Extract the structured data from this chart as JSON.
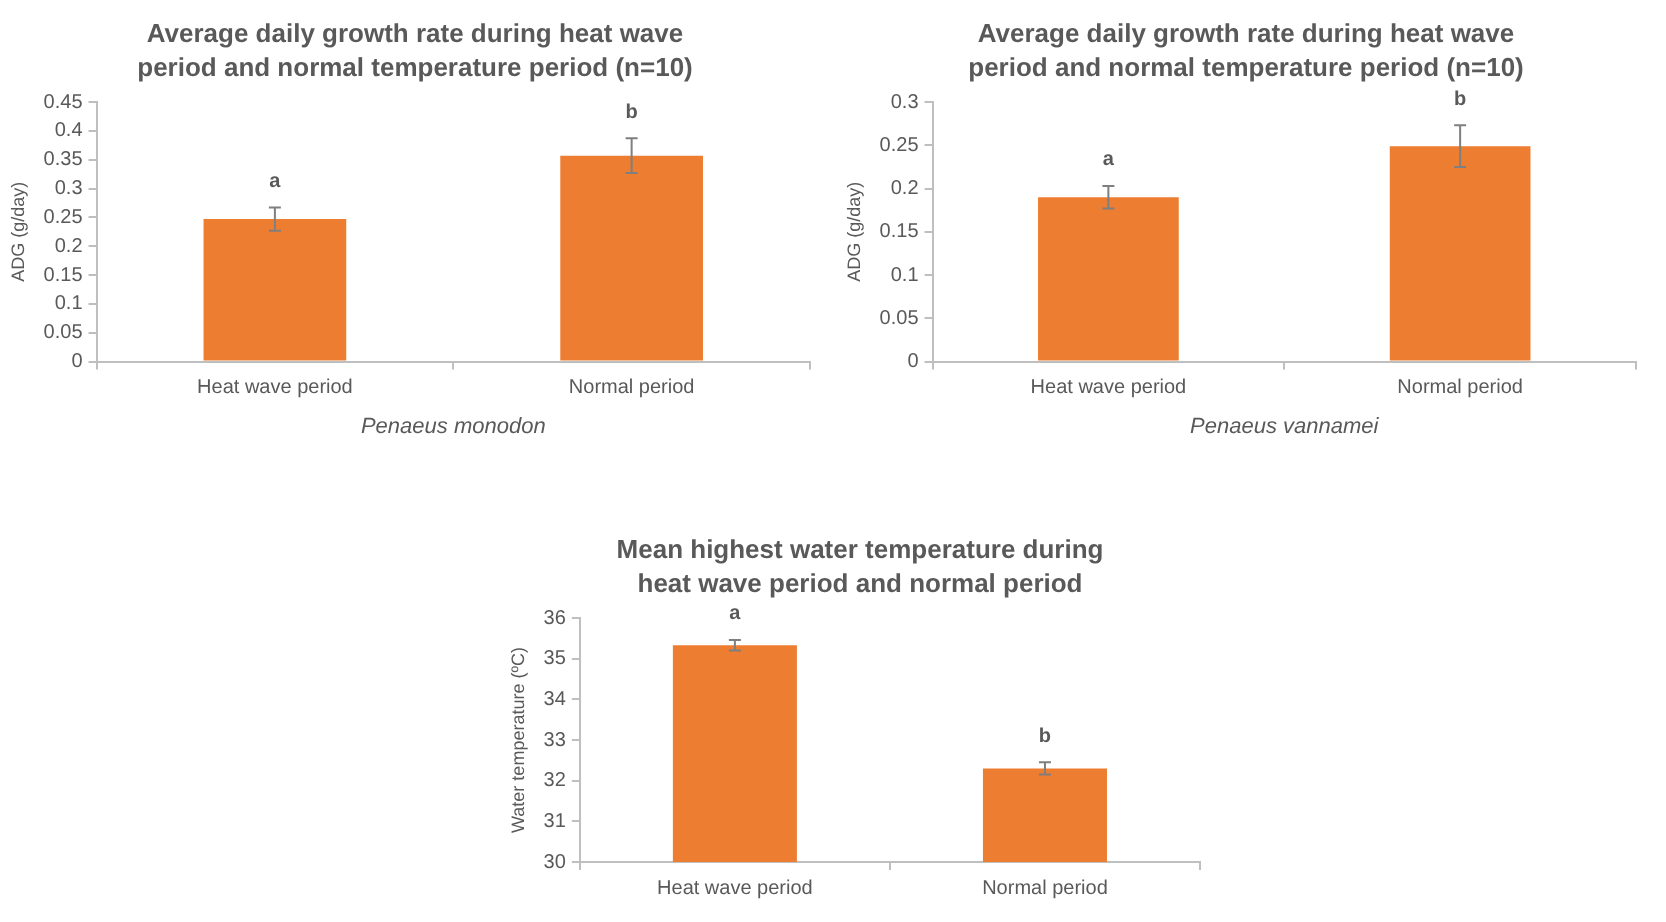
{
  "chart_data": [
    {
      "type": "bar",
      "title": "Average daily growth rate during heat wave period and normal temperature period (n=10)",
      "xlabel": "Penaeus monodon",
      "ylabel": "ADG (g/day)",
      "categories": [
        "Heat wave period",
        "Normal period"
      ],
      "values": [
        0.247,
        0.357
      ],
      "errors": [
        0.02,
        0.03
      ],
      "color": "#ed7d31",
      "ylim": [
        0,
        0.45
      ],
      "yticks": [
        0,
        0.05,
        0.1,
        0.15,
        0.2,
        0.25,
        0.3,
        0.35,
        0.4,
        0.45
      ],
      "grid": false,
      "legend": false,
      "annotations": [
        {
          "text": "a",
          "x": "Heat wave period",
          "y": 0.247
        },
        {
          "text": "b",
          "x": "Normal period",
          "y": 0.357
        }
      ]
    },
    {
      "type": "bar",
      "title": "Average daily growth rate during heat wave period and normal temperature period (n=10)",
      "xlabel": "Penaeus vannamei",
      "ylabel": "ADG (g/day)",
      "categories": [
        "Heat wave period",
        "Normal period"
      ],
      "values": [
        0.19,
        0.249
      ],
      "errors": [
        0.013,
        0.024
      ],
      "color": "#ed7d31",
      "ylim": [
        0,
        0.3
      ],
      "yticks": [
        0,
        0.05,
        0.1,
        0.15,
        0.2,
        0.25,
        0.3
      ],
      "grid": false,
      "legend": false,
      "annotations": [
        {
          "text": "a",
          "x": "Heat wave period",
          "y": 0.19
        },
        {
          "text": "b",
          "x": "Normal period",
          "y": 0.249
        }
      ]
    },
    {
      "type": "bar",
      "title": "Mean highest water temperature during heat wave period and normal period",
      "ylabel": "Water temperature (ºC)",
      "categories": [
        "Heat wave period",
        "Normal period"
      ],
      "values": [
        35.33,
        32.3
      ],
      "errors": [
        0.13,
        0.15
      ],
      "color": "#ed7d31",
      "ylim": [
        30,
        36
      ],
      "yticks": [
        30,
        31,
        32,
        33,
        34,
        35,
        36
      ],
      "grid": false,
      "legend": false,
      "annotations": [
        {
          "text": "a",
          "x": "Heat wave period",
          "y": 35.33
        },
        {
          "text": "b",
          "x": "Normal period",
          "y": 32.3
        }
      ]
    }
  ]
}
